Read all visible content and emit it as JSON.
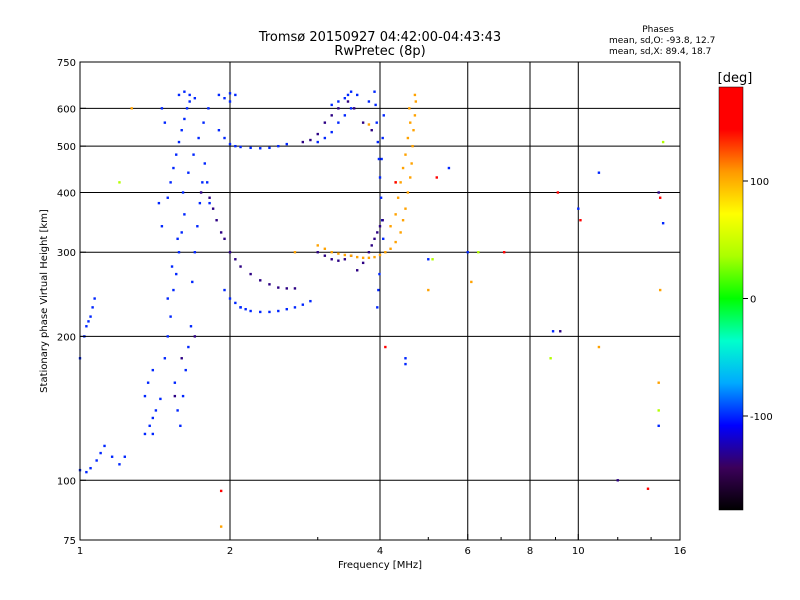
{
  "chart_data": {
    "type": "scatter",
    "title": "Tromsø 20150927 04:42:00-04:43:43",
    "subtitle": "RwPretec (8p)",
    "xlabel": "Frequency [MHz]",
    "ylabel": "Stationary phase Virtual Height [km]",
    "x_scale": "log",
    "y_scale": "log",
    "xlim": [
      1,
      16
    ],
    "ylim": [
      75,
      750
    ],
    "x_ticks": [
      1,
      2,
      4,
      6,
      8,
      10,
      16
    ],
    "x_tick_labels": [
      "1",
      "2",
      "4",
      "6",
      "8",
      "10",
      "16"
    ],
    "x_minor_ticks": [
      3,
      5,
      7,
      9,
      12,
      14
    ],
    "y_ticks": [
      75,
      100,
      200,
      300,
      400,
      500,
      600,
      750
    ],
    "y_tick_labels": [
      "75",
      "100",
      "200",
      "300",
      "400",
      "500",
      "600",
      "750"
    ],
    "grid": true,
    "stats": {
      "heading": "Phases",
      "line_o": "mean, sd,O: -93.8, 12.7",
      "line_x": "mean, sd,X:  89.4, 18.7"
    },
    "colorbar": {
      "label": "[deg]",
      "range": [
        -180,
        180
      ],
      "ticks": [
        100,
        0,
        -100
      ],
      "tick_labels": [
        "100",
        "0",
        "-100"
      ],
      "colors": [
        "#000000",
        "#3b005a",
        "#0000ff",
        "#00aaff",
        "#00ffcc",
        "#00ff00",
        "#aaff00",
        "#ffff00",
        "#ff9900",
        "#ff0000",
        "#ff0000"
      ]
    },
    "series": [
      {
        "phase": -100,
        "points": [
          [
            1.0,
            105
          ],
          [
            1.03,
            104
          ],
          [
            1.05,
            106
          ],
          [
            1.08,
            110
          ],
          [
            1.1,
            114
          ],
          [
            1.12,
            118
          ],
          [
            1.16,
            112
          ],
          [
            1.2,
            108
          ],
          [
            1.23,
            112
          ],
          [
            1.0,
            180
          ],
          [
            1.02,
            200
          ],
          [
            1.04,
            215
          ],
          [
            1.06,
            230
          ],
          [
            1.07,
            240
          ],
          [
            1.05,
            220
          ],
          [
            1.03,
            210
          ],
          [
            1.35,
            125
          ],
          [
            1.38,
            130
          ],
          [
            1.4,
            135
          ],
          [
            1.42,
            140
          ],
          [
            1.45,
            148
          ],
          [
            1.35,
            150
          ],
          [
            1.37,
            160
          ],
          [
            1.4,
            170
          ],
          [
            1.48,
            180
          ],
          [
            1.5,
            200
          ],
          [
            1.52,
            220
          ],
          [
            1.54,
            250
          ],
          [
            1.56,
            270
          ],
          [
            1.58,
            300
          ],
          [
            1.6,
            330
          ],
          [
            1.62,
            360
          ],
          [
            1.5,
            390
          ],
          [
            1.52,
            420
          ],
          [
            1.54,
            450
          ],
          [
            1.56,
            480
          ],
          [
            1.58,
            510
          ],
          [
            1.6,
            540
          ],
          [
            1.62,
            570
          ],
          [
            1.64,
            600
          ],
          [
            1.66,
            620
          ],
          [
            1.55,
            160
          ],
          [
            1.57,
            140
          ],
          [
            1.59,
            130
          ],
          [
            1.61,
            150
          ],
          [
            1.63,
            170
          ],
          [
            1.65,
            190
          ],
          [
            1.67,
            210
          ],
          [
            1.68,
            260
          ],
          [
            1.7,
            300
          ],
          [
            1.72,
            340
          ],
          [
            1.74,
            380
          ],
          [
            1.76,
            420
          ],
          [
            1.78,
            460
          ],
          [
            1.8,
            420
          ],
          [
            1.82,
            380
          ],
          [
            1.5,
            240
          ],
          [
            1.53,
            280
          ],
          [
            1.57,
            320
          ],
          [
            1.61,
            400
          ],
          [
            1.65,
            440
          ],
          [
            1.69,
            480
          ],
          [
            1.73,
            520
          ],
          [
            1.77,
            560
          ],
          [
            1.81,
            600
          ],
          [
            1.58,
            640
          ],
          [
            1.62,
            650
          ],
          [
            1.66,
            640
          ],
          [
            1.7,
            630
          ],
          [
            1.46,
            600
          ],
          [
            1.48,
            560
          ],
          [
            1.44,
            380
          ],
          [
            1.46,
            340
          ],
          [
            1.9,
            640
          ],
          [
            1.95,
            630
          ],
          [
            2.0,
            645
          ],
          [
            2.05,
            640
          ],
          [
            2.0,
            620
          ],
          [
            1.95,
            250
          ],
          [
            2.0,
            240
          ],
          [
            2.05,
            235
          ],
          [
            2.1,
            230
          ],
          [
            2.15,
            228
          ],
          [
            2.2,
            226
          ],
          [
            2.3,
            225
          ],
          [
            2.4,
            225
          ],
          [
            2.5,
            226
          ],
          [
            2.6,
            228
          ],
          [
            2.7,
            230
          ],
          [
            2.8,
            233
          ],
          [
            2.9,
            237
          ],
          [
            1.9,
            540
          ],
          [
            1.95,
            520
          ],
          [
            2.0,
            505
          ],
          [
            2.05,
            500
          ],
          [
            2.1,
            498
          ],
          [
            2.2,
            496
          ],
          [
            2.3,
            495
          ],
          [
            2.4,
            496
          ],
          [
            2.5,
            500
          ],
          [
            2.6,
            505
          ],
          [
            3.0,
            510
          ],
          [
            3.1,
            520
          ],
          [
            3.2,
            535
          ],
          [
            3.3,
            560
          ],
          [
            3.4,
            580
          ],
          [
            3.5,
            600
          ],
          [
            3.4,
            630
          ],
          [
            3.45,
            640
          ],
          [
            3.5,
            650
          ],
          [
            3.3,
            620
          ],
          [
            3.2,
            610
          ],
          [
            3.6,
            640
          ],
          [
            3.8,
            620
          ],
          [
            3.9,
            650
          ],
          [
            3.92,
            610
          ],
          [
            3.94,
            560
          ],
          [
            3.96,
            510
          ],
          [
            3.98,
            470
          ],
          [
            4.0,
            430
          ],
          [
            4.02,
            390
          ],
          [
            4.04,
            350
          ],
          [
            4.06,
            320
          ],
          [
            4.03,
            470
          ],
          [
            4.05,
            520
          ],
          [
            4.07,
            580
          ],
          [
            3.95,
            230
          ],
          [
            3.97,
            250
          ],
          [
            3.99,
            270
          ],
          [
            5.0,
            290
          ],
          [
            5.5,
            450
          ],
          [
            6.0,
            300
          ],
          [
            10.0,
            370
          ],
          [
            11.0,
            440
          ],
          [
            14.5,
            130
          ],
          [
            14.8,
            345
          ],
          [
            8.9,
            205
          ],
          [
            4.5,
            180
          ],
          [
            4.5,
            175
          ],
          [
            2.1,
            230
          ],
          [
            1.4,
            125
          ]
        ]
      },
      {
        "phase": -135,
        "points": [
          [
            1.75,
            400
          ],
          [
            1.82,
            390
          ],
          [
            1.85,
            370
          ],
          [
            1.88,
            350
          ],
          [
            1.92,
            330
          ],
          [
            1.95,
            320
          ],
          [
            2.0,
            300
          ],
          [
            2.05,
            290
          ],
          [
            2.1,
            280
          ],
          [
            2.2,
            270
          ],
          [
            2.3,
            262
          ],
          [
            2.4,
            257
          ],
          [
            2.5,
            253
          ],
          [
            2.6,
            252
          ],
          [
            2.7,
            252
          ],
          [
            2.8,
            510
          ],
          [
            2.9,
            515
          ],
          [
            3.0,
            530
          ],
          [
            3.1,
            560
          ],
          [
            3.2,
            580
          ],
          [
            3.3,
            600
          ],
          [
            3.45,
            620
          ],
          [
            3.55,
            600
          ],
          [
            3.7,
            560
          ],
          [
            3.85,
            540
          ],
          [
            3.6,
            275
          ],
          [
            3.7,
            285
          ],
          [
            3.8,
            300
          ],
          [
            3.85,
            310
          ],
          [
            3.9,
            320
          ],
          [
            3.95,
            330
          ],
          [
            4.0,
            340
          ],
          [
            4.05,
            350
          ],
          [
            3.0,
            300
          ],
          [
            3.1,
            295
          ],
          [
            3.2,
            290
          ],
          [
            3.3,
            288
          ],
          [
            3.4,
            290
          ],
          [
            3.5,
            295
          ],
          [
            1.7,
            200
          ],
          [
            1.6,
            180
          ],
          [
            1.55,
            150
          ],
          [
            9.2,
            205
          ],
          [
            12.0,
            100
          ],
          [
            14.5,
            400
          ]
        ]
      },
      {
        "phase": 105,
        "points": [
          [
            3.0,
            310
          ],
          [
            3.1,
            305
          ],
          [
            3.2,
            300
          ],
          [
            3.3,
            298
          ],
          [
            3.4,
            296
          ],
          [
            3.5,
            295
          ],
          [
            3.6,
            293
          ],
          [
            3.7,
            292
          ],
          [
            3.8,
            292
          ],
          [
            3.9,
            293
          ],
          [
            4.0,
            296
          ],
          [
            4.1,
            300
          ],
          [
            4.2,
            305
          ],
          [
            4.3,
            315
          ],
          [
            4.4,
            330
          ],
          [
            4.45,
            350
          ],
          [
            4.5,
            370
          ],
          [
            4.55,
            400
          ],
          [
            4.6,
            430
          ],
          [
            4.63,
            460
          ],
          [
            4.65,
            500
          ],
          [
            4.67,
            540
          ],
          [
            4.7,
            580
          ],
          [
            4.72,
            620
          ],
          [
            4.7,
            640
          ],
          [
            4.2,
            340
          ],
          [
            4.3,
            360
          ],
          [
            4.35,
            390
          ],
          [
            4.4,
            420
          ],
          [
            4.45,
            450
          ],
          [
            4.5,
            480
          ],
          [
            4.55,
            520
          ],
          [
            4.6,
            560
          ],
          [
            4.58,
            600
          ],
          [
            1.27,
            600
          ],
          [
            1.92,
            80
          ],
          [
            5.0,
            250
          ],
          [
            6.1,
            260
          ],
          [
            11.0,
            190
          ],
          [
            14.5,
            160
          ],
          [
            14.6,
            250
          ],
          [
            2.7,
            300
          ],
          [
            3.8,
            555
          ],
          [
            4.3,
            420
          ]
        ]
      },
      {
        "phase": 40,
        "points": [
          [
            5.1,
            290
          ],
          [
            8.8,
            180
          ],
          [
            14.8,
            510
          ],
          [
            6.3,
            300
          ],
          [
            1.2,
            420
          ],
          [
            14.5,
            140
          ]
        ]
      },
      {
        "phase": 150,
        "points": [
          [
            4.1,
            190
          ],
          [
            5.2,
            430
          ],
          [
            9.1,
            400
          ],
          [
            10.1,
            350
          ],
          [
            13.8,
            96
          ],
          [
            1.92,
            95
          ],
          [
            4.3,
            420
          ],
          [
            7.1,
            300
          ],
          [
            14.6,
            390
          ]
        ]
      }
    ]
  }
}
